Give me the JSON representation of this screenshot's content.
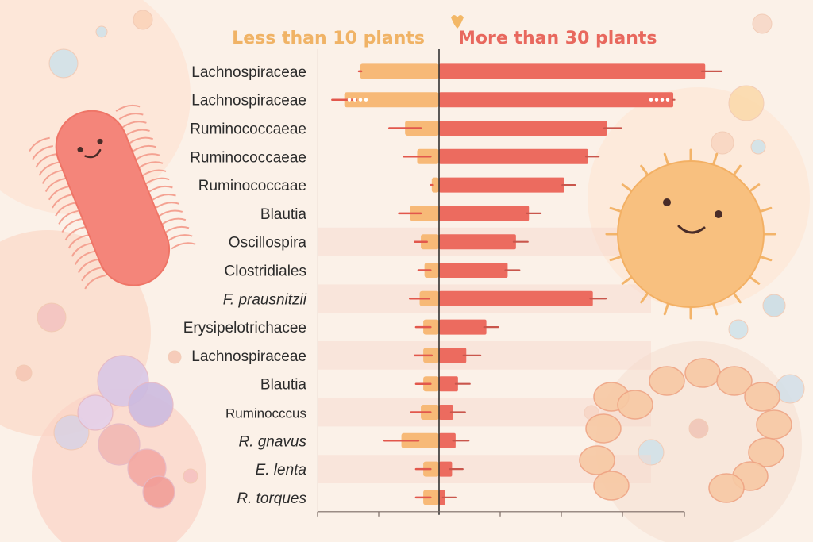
{
  "chart_data": {
    "type": "bar",
    "orientation": "diverging-horizontal",
    "title": "",
    "series": [
      {
        "name": "Less than 10 plants",
        "color": "#f7b977",
        "values": [
          -6.5,
          -7.8,
          -2.8,
          -1.8,
          -0.6,
          -2.4,
          -1.5,
          -1.2,
          -1.6,
          -1.3,
          -1.3,
          -1.3,
          -1.5,
          -3.1,
          -1.3,
          -1.3
        ],
        "errors": [
          0.1,
          1.0,
          1.3,
          1.1,
          0.1,
          0.9,
          0.5,
          0.5,
          0.8,
          0.6,
          0.7,
          0.6,
          0.8,
          1.4,
          0.6,
          0.6
        ]
      },
      {
        "name": "More than 30 plants",
        "color": "#ec6b5f",
        "values": [
          22.5,
          19.8,
          14.2,
          12.6,
          10.6,
          7.6,
          6.5,
          5.8,
          13.0,
          4.0,
          2.3,
          1.6,
          1.2,
          1.4,
          1.1,
          0.5
        ],
        "errors": [
          1.4,
          0.1,
          1.2,
          0.9,
          0.9,
          1.0,
          1.0,
          1.0,
          1.1,
          1.0,
          1.2,
          1.0,
          1.0,
          1.1,
          0.9,
          0.9
        ]
      }
    ],
    "categories": [
      {
        "label": "Lachnospiraceae",
        "italic": false
      },
      {
        "label": "Lachnospiraceae",
        "italic": false
      },
      {
        "label": "Ruminococcaeae",
        "italic": false
      },
      {
        "label": "Ruminococcaeae",
        "italic": false
      },
      {
        "label": "Ruminococcaae",
        "italic": false
      },
      {
        "label": "Blautia",
        "italic": false
      },
      {
        "label": "Oscillospira",
        "italic": false
      },
      {
        "label": "Clostridiales",
        "italic": false
      },
      {
        "label": "F. prausnitzii",
        "italic": true
      },
      {
        "label": "Erysipelotrichacee",
        "italic": false
      },
      {
        "label": "Lachnospiraceae",
        "italic": false
      },
      {
        "label": "Blautia",
        "italic": false
      },
      {
        "label": "Ruminocccus",
        "italic": false,
        "small": true
      },
      {
        "label": "R. gnavus",
        "italic": true
      },
      {
        "label": "E. lenta",
        "italic": true
      },
      {
        "label": "R. torques",
        "italic": true
      }
    ],
    "xlim": [
      -10,
      30
    ],
    "grid": false,
    "legend": "top"
  },
  "colors": {
    "background": "#fbf1e8",
    "left_bar": "#f7b977",
    "right_bar": "#ec6b5f",
    "row_band": "#f6d8cc",
    "axis": "#333333"
  },
  "decorations": [
    "rod-bacterium-icon",
    "round-bacterium-icon",
    "chain-bacteria-icon",
    "bubble-cluster-icon"
  ]
}
